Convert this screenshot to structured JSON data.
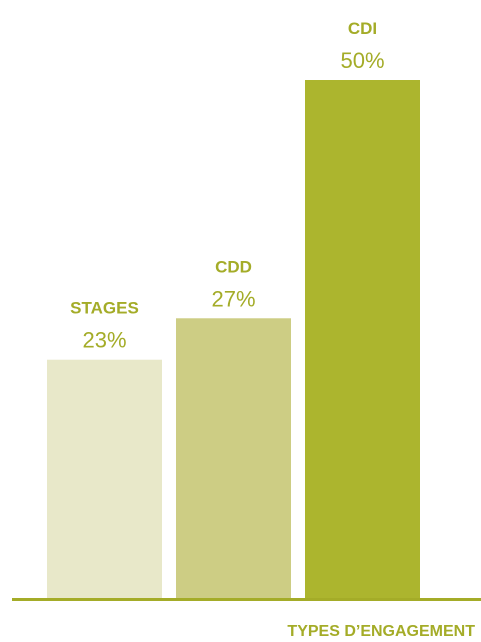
{
  "chart_data": {
    "type": "bar",
    "categories": [
      "STAGES",
      "CDD",
      "CDI"
    ],
    "values": [
      23,
      27,
      50
    ],
    "value_labels": [
      "23%",
      "27%",
      "50%"
    ],
    "bar_colors": [
      "#e8e8c9",
      "#cdcd84",
      "#acb52e"
    ],
    "label_color": "#a4ac28",
    "axis_color": "#a4ac28",
    "xlabel": "TYPES D’ENGAGEMENT",
    "ylabel": "",
    "ylim": [
      0,
      50
    ],
    "grid": false,
    "legend": "none"
  }
}
